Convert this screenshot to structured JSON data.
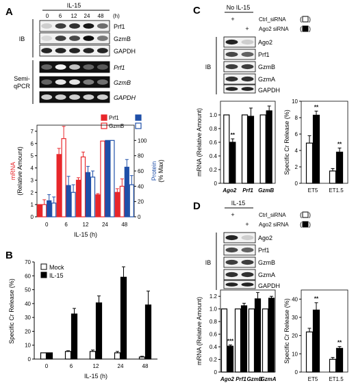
{
  "panels": {
    "A": {
      "letter": "A",
      "treatment": "IL-15",
      "timepoints": [
        "0",
        "6",
        "12",
        "24",
        "48"
      ],
      "time_unit": "(h)",
      "blot_groups": [
        {
          "label_lines": [
            "IB"
          ],
          "bands": [
            "Prf1",
            "GzmB",
            "GAPDH"
          ],
          "italic": false
        },
        {
          "label_lines": [
            "Semi-",
            "qPCR"
          ],
          "bands": [
            "Prf1",
            "GzmB",
            "GAPDH"
          ],
          "italic": true
        }
      ],
      "chart": {
        "type": "bar",
        "categories": [
          "0",
          "6",
          "12",
          "24",
          "48"
        ],
        "xlabel": "IL-15 (h)",
        "ylabel_left": [
          "mRNA",
          "(Relative Amount)"
        ],
        "ylabel_right": [
          "Protein",
          "(% Max)"
        ],
        "ylim_left": [
          0,
          7.5
        ],
        "ylim_right": [
          0,
          120
        ],
        "yticks_left": [
          0,
          1,
          2,
          3,
          4,
          5,
          6,
          7
        ],
        "yticks_right": [
          0,
          20,
          40,
          60,
          80,
          100
        ],
        "legend": [
          {
            "name": "Prf1",
            "color": "#e8262a",
            "fill": "solid"
          },
          {
            "name": "GzmB",
            "color": "#e8262a",
            "fill": "open"
          },
          {
            "name": "",
            "color": "#1f4fa8",
            "fill": "solid"
          },
          {
            "name": "",
            "color": "#1f4fa8",
            "fill": "open"
          }
        ],
        "series": [
          {
            "axis": "left",
            "color": "#e8262a",
            "fill": "solid",
            "values": [
              1.0,
              5.1,
              3.0,
              1.8,
              2.0
            ],
            "err": [
              0.0,
              0.5,
              0.2,
              0.1,
              0.3
            ]
          },
          {
            "axis": "left",
            "color": "#e8262a",
            "fill": "open",
            "values": [
              1.0,
              6.4,
              4.9,
              6.2,
              2.5
            ],
            "err": [
              0.4,
              1.0,
              0.4,
              0.0,
              0.6
            ]
          },
          {
            "axis": "right",
            "color": "#1f4fa8",
            "fill": "solid",
            "values": [
              21,
              41,
              58,
              100,
              65
            ],
            "err": [
              8,
              12,
              8,
              0,
              10
            ]
          },
          {
            "axis": "right",
            "color": "#1f4fa8",
            "fill": "open",
            "values": [
              18,
              32,
              52,
              100,
              42
            ],
            "err": [
              8,
              10,
              8,
              0,
              12
            ]
          }
        ]
      }
    },
    "B": {
      "letter": "B",
      "chart": {
        "type": "bar",
        "categories": [
          "0",
          "6",
          "12",
          "24",
          "48"
        ],
        "xlabel": "IL-15 (h)",
        "ylabel": "Specific Cr Release (%)",
        "ylim": [
          0,
          70
        ],
        "yticks": [
          0,
          10,
          20,
          30,
          40,
          50,
          60,
          70
        ],
        "series": [
          {
            "name": "Mock",
            "fill": "open",
            "values": [
              4.5,
              5.5,
              5.5,
              4.5,
              1.5
            ],
            "err": [
              0.0,
              0.5,
              1.0,
              1.0,
              0.5
            ]
          },
          {
            "name": "IL-15",
            "fill": "solid",
            "values": [
              4.5,
              32.5,
              40.5,
              59.0,
              39.0
            ],
            "err": [
              0.0,
              4.0,
              5.0,
              7.5,
              10.0
            ]
          }
        ]
      }
    },
    "C": {
      "letter": "C",
      "header": "No IL-15",
      "lane_marks": [
        [
          "+",
          ""
        ],
        [
          "",
          "+"
        ]
      ],
      "key": [
        {
          "label": "Ctrl_siRNA",
          "fill": "open"
        },
        {
          "label": "Ago2 siRNA",
          "fill": "solid"
        }
      ],
      "ib_label": "IB",
      "bands": [
        "Ago2",
        "Prf1",
        "GzmB",
        "GzmA",
        "GAPDH"
      ],
      "chart_mrna": {
        "type": "bar",
        "categories": [
          "Ago2",
          "Prf1",
          "GzmB"
        ],
        "ylabel": [
          "mRNA (Relative Amount)"
        ],
        "ylim": [
          0,
          1.2
        ],
        "yticks": [
          0,
          0.2,
          0.4,
          0.6,
          0.8,
          1.0
        ],
        "series": [
          {
            "name": "Ctrl_siRNA",
            "fill": "open",
            "values": [
              1.0,
              1.0,
              1.0
            ],
            "err": [
              0.0,
              0.0,
              0.0
            ]
          },
          {
            "name": "Ago2 siRNA",
            "fill": "solid",
            "values": [
              0.6,
              0.98,
              1.06
            ],
            "err": [
              0.05,
              0.12,
              0.07
            ]
          }
        ],
        "annotations": [
          {
            "category": "Ago2",
            "series": 1,
            "text": "**"
          }
        ]
      },
      "chart_cr": {
        "type": "bar",
        "categories": [
          "ET5",
          "ET1.5"
        ],
        "ylabel": "Specific Cr Release (%)",
        "ylim": [
          0,
          10
        ],
        "yticks": [
          0,
          2,
          4,
          6,
          8,
          10
        ],
        "series": [
          {
            "name": "Ctrl_siRNA",
            "fill": "open",
            "values": [
              4.9,
              1.5
            ],
            "err": [
              0.9,
              0.3
            ]
          },
          {
            "name": "Ago2 siRNA",
            "fill": "solid",
            "values": [
              8.3,
              3.8
            ],
            "err": [
              0.5,
              0.5
            ]
          }
        ],
        "annotations": [
          {
            "category": "ET5",
            "series": 1,
            "text": "**"
          },
          {
            "category": "ET1.5",
            "series": 1,
            "text": "**"
          }
        ]
      }
    },
    "D": {
      "letter": "D",
      "header": "IL-15",
      "lane_marks": [
        [
          "+",
          ""
        ],
        [
          "",
          "+"
        ]
      ],
      "key": [
        {
          "label": "Ctrl_siRNA",
          "fill": "open"
        },
        {
          "label": "Ago2 siRNA",
          "fill": "solid"
        }
      ],
      "ib_label": "IB",
      "bands": [
        "Ago2",
        "Prf1",
        "GzmB",
        "GzmA",
        "GAPDH"
      ],
      "chart_mrna": {
        "type": "bar",
        "categories": [
          "Ago2",
          "Prf1",
          "GzmB",
          "GzmA"
        ],
        "ylabel": [
          "mRNA (Relative Amount)"
        ],
        "ylim": [
          0,
          1.3
        ],
        "yticks": [
          0,
          0.2,
          0.4,
          0.6,
          0.8,
          1.0,
          1.2
        ],
        "series": [
          {
            "name": "Ctrl_siRNA",
            "fill": "open",
            "values": [
              1.0,
              1.0,
              1.0,
              1.0
            ],
            "err": [
              0.0,
              0.0,
              0.0,
              0.0
            ]
          },
          {
            "name": "Ago2 siRNA",
            "fill": "solid",
            "values": [
              0.41,
              1.05,
              1.16,
              1.17
            ],
            "err": [
              0.02,
              0.04,
              0.1,
              0.03
            ]
          }
        ],
        "annotations": [
          {
            "category": "Ago2",
            "series": 1,
            "text": "***"
          }
        ]
      },
      "chart_cr": {
        "type": "bar",
        "categories": [
          "ET5",
          "ET1.5"
        ],
        "ylabel": "Specific Cr Release (%)",
        "ylim": [
          0,
          45
        ],
        "yticks": [
          0,
          10,
          20,
          30,
          40
        ],
        "series": [
          {
            "name": "Ctrl_siRNA",
            "fill": "open",
            "values": [
              22,
              7
            ],
            "err": [
              2,
              1
            ]
          },
          {
            "name": "Ago2 siRNA",
            "fill": "solid",
            "values": [
              34,
              13
            ],
            "err": [
              4,
              1
            ]
          }
        ],
        "annotations": [
          {
            "category": "ET5",
            "series": 1,
            "text": "**"
          },
          {
            "category": "ET1.5",
            "series": 1,
            "text": "**"
          }
        ]
      }
    }
  },
  "chart_data": [
    {
      "type": "bar",
      "panel": "A",
      "categories": [
        "0",
        "6",
        "12",
        "24",
        "48"
      ],
      "xlabel": "IL-15 (h)",
      "ylabel": "mRNA (Relative Amount)",
      "y2label": "Protein (% Max)",
      "ylim": [
        0,
        7.5
      ],
      "y2lim": [
        0,
        120
      ],
      "series": [
        {
          "name": "Prf1",
          "axis": "left",
          "values": [
            1.0,
            5.1,
            3.0,
            1.8,
            2.0
          ]
        },
        {
          "name": "GzmB",
          "axis": "left",
          "values": [
            1.0,
            6.4,
            4.9,
            6.2,
            2.5
          ]
        },
        {
          "axis": "right",
          "values": [
            21,
            41,
            58,
            100,
            65
          ]
        },
        {
          "axis": "right",
          "values": [
            18,
            32,
            52,
            100,
            42
          ]
        }
      ]
    },
    {
      "type": "bar",
      "panel": "B",
      "categories": [
        "0",
        "6",
        "12",
        "24",
        "48"
      ],
      "xlabel": "IL-15 (h)",
      "ylabel": "Specific Cr Release (%)",
      "ylim": [
        0,
        70
      ],
      "series": [
        {
          "name": "Mock",
          "values": [
            4.5,
            5.5,
            5.5,
            4.5,
            1.5
          ]
        },
        {
          "name": "IL-15",
          "values": [
            4.5,
            32.5,
            40.5,
            59.0,
            39.0
          ]
        }
      ]
    },
    {
      "type": "bar",
      "panel": "C-left",
      "categories": [
        "Ago2",
        "Prf1",
        "GzmB"
      ],
      "ylabel": "mRNA (Relative Amount)",
      "ylim": [
        0,
        1.2
      ],
      "series": [
        {
          "name": "Ctrl_siRNA",
          "values": [
            1.0,
            1.0,
            1.0
          ]
        },
        {
          "name": "Ago2 siRNA",
          "values": [
            0.6,
            0.98,
            1.06
          ]
        }
      ]
    },
    {
      "type": "bar",
      "panel": "C-right",
      "categories": [
        "ET5",
        "ET1.5"
      ],
      "ylabel": "Specific Cr Release (%)",
      "ylim": [
        0,
        10
      ],
      "series": [
        {
          "name": "Ctrl_siRNA",
          "values": [
            4.9,
            1.5
          ]
        },
        {
          "name": "Ago2 siRNA",
          "values": [
            8.3,
            3.8
          ]
        }
      ]
    },
    {
      "type": "bar",
      "panel": "D-left",
      "categories": [
        "Ago2",
        "Prf1",
        "GzmB",
        "GzmA"
      ],
      "ylabel": "mRNA (Relative Amount)",
      "ylim": [
        0,
        1.3
      ],
      "series": [
        {
          "name": "Ctrl_siRNA",
          "values": [
            1.0,
            1.0,
            1.0,
            1.0
          ]
        },
        {
          "name": "Ago2 siRNA",
          "values": [
            0.41,
            1.05,
            1.16,
            1.17
          ]
        }
      ]
    },
    {
      "type": "bar",
      "panel": "D-right",
      "categories": [
        "ET5",
        "ET1.5"
      ],
      "ylabel": "Specific Cr Release (%)",
      "ylim": [
        0,
        45
      ],
      "series": [
        {
          "name": "Ctrl_siRNA",
          "values": [
            22,
            7
          ]
        },
        {
          "name": "Ago2 siRNA",
          "values": [
            34,
            13
          ]
        }
      ]
    }
  ]
}
